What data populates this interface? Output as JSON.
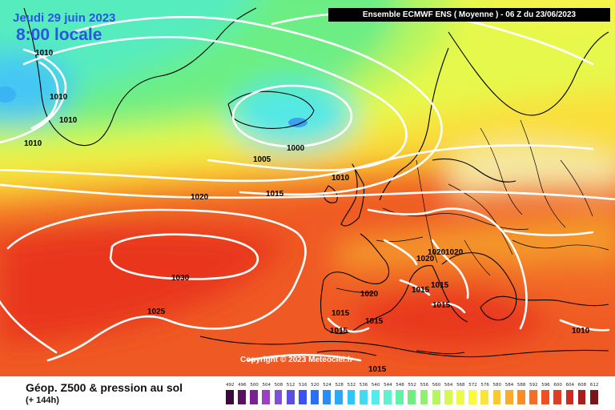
{
  "header": {
    "date": "Jeudi 29 juin 2023",
    "time": "8:00 locale",
    "run_info": "Ensemble ECMWF ENS  ( Moyenne )  -  06 Z du 23/06/2023"
  },
  "map": {
    "copyright": "Copyright © 2023 Meteociel.fr",
    "isobars": [
      {
        "id": "iso-1010-a",
        "label": "1010"
      },
      {
        "id": "iso-1010-b",
        "label": "1010"
      },
      {
        "id": "iso-1010-c",
        "label": "1010"
      },
      {
        "id": "iso-1010-d",
        "label": "1010"
      },
      {
        "id": "iso-1010-e",
        "label": "1010"
      },
      {
        "id": "iso-1000",
        "label": "1000"
      },
      {
        "id": "iso-1005",
        "label": "1005"
      },
      {
        "id": "iso-1015-a",
        "label": "1015"
      },
      {
        "id": "iso-1020-a",
        "label": "1020"
      },
      {
        "id": "iso-1030",
        "label": "1030"
      },
      {
        "id": "iso-1025",
        "label": "1025"
      },
      {
        "id": "iso-1020-b",
        "label": "1020"
      },
      {
        "id": "iso-1020-c",
        "label": "1020"
      },
      {
        "id": "iso-1020-d",
        "label": "1020"
      },
      {
        "id": "iso-1020-e",
        "label": "1020"
      },
      {
        "id": "iso-1015-b",
        "label": "1015"
      },
      {
        "id": "iso-1015-c",
        "label": "1015"
      },
      {
        "id": "iso-1015-d",
        "label": "1015"
      },
      {
        "id": "iso-1015-e",
        "label": "1015"
      },
      {
        "id": "iso-1015-f",
        "label": "1015"
      },
      {
        "id": "iso-1015-g",
        "label": "1015"
      },
      {
        "id": "iso-1015-h",
        "label": "1015"
      },
      {
        "id": "iso-1010-f",
        "label": "1010"
      }
    ]
  },
  "footer": {
    "product": "Géop. Z500 & pression au sol",
    "lead_time": "(+ 144h)"
  },
  "legend": {
    "values": [
      "492",
      "496",
      "500",
      "504",
      "508",
      "512",
      "516",
      "520",
      "524",
      "528",
      "532",
      "536",
      "540",
      "544",
      "548",
      "552",
      "556",
      "560",
      "564",
      "568",
      "572",
      "576",
      "580",
      "584",
      "588",
      "592",
      "596",
      "600",
      "604",
      "608",
      "612"
    ],
    "colors": [
      "#3a0a3a",
      "#5a1060",
      "#7a2090",
      "#9a40c0",
      "#8050d8",
      "#5a4ee6",
      "#3a54f2",
      "#2a70f6",
      "#2a8cf8",
      "#2aa8fa",
      "#30c4fa",
      "#40dcf6",
      "#50ecee",
      "#5cf2d2",
      "#60f2a8",
      "#70ee80",
      "#90f070",
      "#b6f460",
      "#d6f850",
      "#eefa48",
      "#fafa40",
      "#fae43a",
      "#fac834",
      "#faac2e",
      "#f88e2a",
      "#f46e26",
      "#ee5024",
      "#e23c22",
      "#ce2a20",
      "#a81e1c",
      "#7a1416"
    ]
  }
}
